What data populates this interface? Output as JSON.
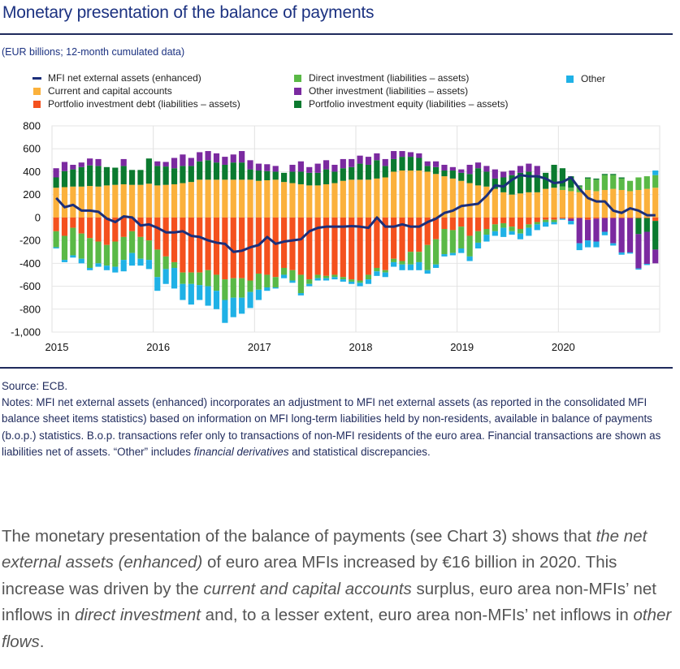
{
  "title": "Monetary presentation of the balance of payments",
  "subtitle": "(EUR billions; 12-month cumulated data)",
  "chart_data": {
    "type": "bar",
    "stacked": true,
    "ylim": [
      -1000,
      800
    ],
    "yticks": [
      "800",
      "600",
      "400",
      "200",
      "0",
      "-200",
      "-400",
      "-600",
      "-800",
      "-1,000"
    ],
    "ytick_values": [
      800,
      600,
      400,
      200,
      0,
      -200,
      -400,
      -600,
      -800,
      -1000
    ],
    "xticks": [
      "2015",
      "2016",
      "2017",
      "2018",
      "2019",
      "2020"
    ],
    "x_start": "2015-01",
    "x_end": "2020-12",
    "frequency": "monthly",
    "grid": true,
    "legend_placement": "top",
    "line": {
      "name": "MFI net external assets (enhanced)",
      "color": "#1c2f7a",
      "values": [
        170,
        90,
        110,
        60,
        60,
        50,
        -10,
        -40,
        10,
        0,
        -70,
        -60,
        -90,
        -130,
        -130,
        -120,
        -160,
        -170,
        -200,
        -220,
        -230,
        -300,
        -290,
        -260,
        -240,
        -170,
        -230,
        -210,
        -200,
        -190,
        -120,
        -90,
        -80,
        -80,
        -80,
        -75,
        -80,
        -90,
        0,
        -80,
        -80,
        -60,
        -80,
        -80,
        -40,
        -10,
        40,
        60,
        100,
        110,
        120,
        190,
        280,
        270,
        330,
        370,
        360,
        360,
        340,
        300,
        310,
        350,
        250,
        170,
        140,
        140,
        60,
        40,
        80,
        60,
        20,
        20
      ]
    },
    "series": [
      {
        "name": "Current and capital accounts",
        "color": "#fbb13c",
        "values": [
          260,
          265,
          270,
          270,
          275,
          270,
          280,
          285,
          290,
          285,
          285,
          295,
          280,
          285,
          290,
          300,
          310,
          330,
          330,
          330,
          330,
          330,
          330,
          330,
          320,
          325,
          330,
          310,
          300,
          290,
          280,
          280,
          290,
          300,
          320,
          330,
          330,
          330,
          340,
          350,
          400,
          410,
          410,
          410,
          400,
          380,
          360,
          340,
          320,
          300,
          280,
          270,
          250,
          220,
          200,
          210,
          220,
          220,
          250,
          260,
          240,
          230,
          220,
          240,
          230,
          240,
          250,
          240,
          230,
          240,
          250,
          260
        ]
      },
      {
        "name": "Portfolio investment debt (liabilities – assets)",
        "color": "#f4511e",
        "values": [
          -120,
          -160,
          -90,
          -140,
          -180,
          -210,
          -240,
          -210,
          -170,
          -120,
          -170,
          -200,
          -280,
          -340,
          -390,
          -480,
          -480,
          -480,
          -460,
          -500,
          -540,
          -530,
          -530,
          -550,
          -490,
          -500,
          -520,
          -440,
          -460,
          -500,
          -540,
          -500,
          -510,
          -500,
          -520,
          -540,
          -550,
          -500,
          -440,
          -460,
          -360,
          -380,
          -300,
          -300,
          -240,
          -190,
          -100,
          -110,
          -80,
          -160,
          -120,
          -100,
          -60,
          -50,
          -80,
          -100,
          -60,
          -40,
          -20,
          -20,
          -10,
          -10,
          -5,
          -20,
          -10,
          -5,
          -5,
          -5,
          -5,
          -5,
          -5,
          -30
        ]
      },
      {
        "name": "Direct investment (liabilities – assets)",
        "color": "#5ab946",
        "values": [
          -140,
          -210,
          -240,
          -220,
          -260,
          -190,
          -180,
          -220,
          -200,
          -190,
          -190,
          -170,
          -240,
          -110,
          -50,
          -100,
          -100,
          -110,
          -140,
          -140,
          -180,
          -170,
          -170,
          -100,
          -140,
          -110,
          -90,
          -60,
          -90,
          -160,
          -40,
          -30,
          -20,
          -20,
          -20,
          -20,
          -20,
          -40,
          -30,
          -20,
          -30,
          -30,
          -110,
          -90,
          -220,
          -220,
          -220,
          -200,
          -190,
          -180,
          -100,
          -50,
          -60,
          -40,
          -40,
          -40,
          -30,
          -20,
          -20,
          -20,
          30,
          30,
          50,
          100,
          100,
          130,
          120,
          100,
          90,
          110,
          110,
          110
        ]
      },
      {
        "name": "Portfolio investment equity (liabilities – assets)",
        "color": "#0b7a2f",
        "values": [
          90,
          140,
          150,
          170,
          180,
          180,
          160,
          150,
          160,
          130,
          130,
          220,
          170,
          160,
          140,
          150,
          140,
          160,
          170,
          150,
          130,
          150,
          150,
          90,
          90,
          80,
          70,
          80,
          100,
          110,
          110,
          110,
          130,
          100,
          110,
          110,
          140,
          130,
          160,
          100,
          110,
          120,
          120,
          110,
          50,
          60,
          50,
          70,
          70,
          80,
          150,
          130,
          90,
          130,
          170,
          180,
          180,
          150,
          140,
          200,
          160,
          100,
          10,
          10,
          10,
          10,
          10,
          10,
          0,
          -140,
          -120,
          -250
        ]
      },
      {
        "name": "Other investment (liabilities – assets)",
        "color": "#7b2aa0",
        "values": [
          80,
          80,
          40,
          40,
          60,
          60,
          0,
          0,
          60,
          0,
          0,
          0,
          40,
          40,
          90,
          100,
          70,
          80,
          80,
          80,
          70,
          70,
          100,
          80,
          60,
          60,
          50,
          0,
          60,
          90,
          50,
          80,
          80,
          60,
          80,
          70,
          70,
          70,
          60,
          60,
          70,
          50,
          40,
          40,
          40,
          50,
          50,
          30,
          30,
          80,
          50,
          50,
          80,
          50,
          40,
          60,
          70,
          80,
          0,
          0,
          0,
          -20,
          -220,
          -180,
          -200,
          -120,
          -220,
          -300,
          -300,
          -300,
          -280,
          -120
        ]
      },
      {
        "name": "Other",
        "color": "#1fb1e6",
        "values": [
          -10,
          -20,
          -20,
          -40,
          -20,
          -30,
          -40,
          -50,
          -100,
          -110,
          -60,
          -80,
          -120,
          -130,
          -180,
          -140,
          -180,
          -130,
          -170,
          -160,
          -200,
          -170,
          -140,
          -140,
          -90,
          -30,
          -10,
          -30,
          -20,
          -20,
          -20,
          -20,
          -20,
          -20,
          -20,
          -20,
          -30,
          -40,
          -40,
          -40,
          -40,
          -50,
          -50,
          -70,
          -30,
          -30,
          -20,
          -20,
          -40,
          -40,
          -50,
          -60,
          -40,
          -80,
          -30,
          -50,
          -70,
          -50,
          -40,
          -20,
          -10,
          -30,
          -60,
          -60,
          -50,
          -30,
          -20,
          -20,
          -10,
          -10,
          -10,
          40
        ]
      }
    ]
  },
  "legend": [
    {
      "label": "MFI net external assets (enhanced)",
      "type": "line",
      "color": "#1c2f7a"
    },
    {
      "label": "Current and capital accounts",
      "type": "box",
      "color": "#fbb13c"
    },
    {
      "label": "Portfolio investment debt (liabilities – assets)",
      "type": "box",
      "color": "#f4511e"
    },
    {
      "label": "Direct investment (liabilities – assets)",
      "type": "box",
      "color": "#5ab946"
    },
    {
      "label": "Other investment (liabilities – assets)",
      "type": "box",
      "color": "#7b2aa0"
    },
    {
      "label": "Portfolio investment equity (liabilities – assets)",
      "type": "box",
      "color": "#0b7a2f"
    },
    {
      "label": "Other",
      "type": "box",
      "color": "#1fb1e6"
    }
  ],
  "source": "Source: ECB.",
  "notes": {
    "a": "Notes: MFI net external assets (enhanced) incorporates an adjustment to MFI net external assets (as reported in the consolidated MFI balance sheet items statistics) based on information on MFI long-term liabilities held by non-residents, available in balance of payments (b.o.p.) statistics. B.o.p. transactions refer only to transactions of non-MFI residents of the euro area. Financial transactions are shown as liabilities net of assets. “Other” includes ",
    "b": "financial derivatives",
    "c": " and statistical discrepancies."
  },
  "paragraph": {
    "p1": "The monetary presentation of the balance of payments (see Chart 3) shows that ",
    "i1": "the net external assets (enhanced)",
    "p2": " of euro area MFIs increased by €16 billion in 2020. This increase was driven by the ",
    "i2": "current and capital accounts",
    "p3": " surplus, euro area non-MFIs’ net inflows in ",
    "i3": "direct investment",
    "p4": " and, to a lesser extent, euro area non-MFIs’ net inflows in ",
    "i4": "other flows",
    "p5": "."
  }
}
